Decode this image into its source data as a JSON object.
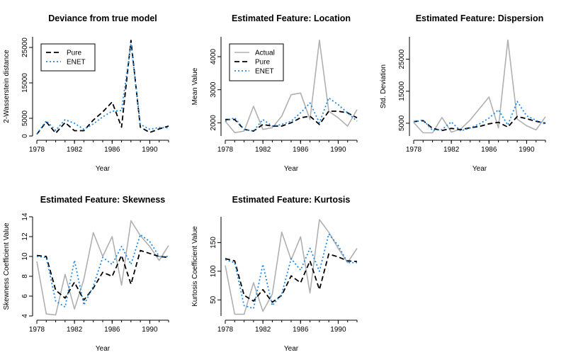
{
  "colors": {
    "pure": "#000000",
    "enet": "#1E88E5",
    "actual": "#B0B0B0"
  },
  "chart_data": [
    {
      "type": "line",
      "title": "Deviance from true model",
      "xlabel": "Year",
      "ylabel": "2-Wasserstein distance",
      "xlim": [
        1978,
        1992
      ],
      "ylim": [
        0,
        28000
      ],
      "xticks": [
        1978,
        1982,
        1986,
        1990
      ],
      "yticks": [
        0,
        5000,
        15000,
        25000
      ],
      "legend": "top-left",
      "x": [
        1978,
        1979,
        1980,
        1981,
        1982,
        1983,
        1984,
        1985,
        1986,
        1987,
        1988,
        1989,
        1990,
        1991,
        1992
      ],
      "series": [
        {
          "name": "Pure",
          "style": "pure",
          "values": [
            500,
            4000,
            800,
            3800,
            1500,
            1500,
            4500,
            6800,
            9600,
            2500,
            27000,
            2500,
            1000,
            2000,
            2800
          ]
        },
        {
          "name": "ENET",
          "style": "enet",
          "values": [
            600,
            4300,
            1600,
            4600,
            3600,
            1900,
            3400,
            5400,
            7000,
            7200,
            26000,
            3300,
            1900,
            2400,
            2300
          ]
        }
      ]
    },
    {
      "type": "line",
      "title": "Estimated Feature: Location",
      "xlabel": "Year",
      "ylabel": "Mean Value",
      "xlim": [
        1978,
        1992
      ],
      "ylim": [
        1600,
        4600
      ],
      "xticks": [
        1978,
        1982,
        1986,
        1990
      ],
      "yticks": [
        2000,
        3000,
        4000
      ],
      "legend": "top-left",
      "x": [
        1978,
        1979,
        1980,
        1981,
        1982,
        1983,
        1984,
        1985,
        1986,
        1987,
        1988,
        1989,
        1990,
        1991,
        1992
      ],
      "series": [
        {
          "name": "Actual",
          "style": "actual",
          "values": [
            2050,
            1700,
            1750,
            2500,
            1800,
            1850,
            2200,
            2850,
            2900,
            2100,
            4500,
            2350,
            2150,
            1900,
            2400
          ]
        },
        {
          "name": "Pure",
          "style": "pure",
          "values": [
            2100,
            2100,
            1800,
            1750,
            1950,
            1900,
            1900,
            2000,
            2150,
            2200,
            1950,
            2350,
            2350,
            2300,
            2150
          ]
        },
        {
          "name": "ENET",
          "style": "enet",
          "values": [
            2050,
            2150,
            1800,
            1750,
            2100,
            1900,
            1950,
            2050,
            2300,
            2600,
            2000,
            2750,
            2550,
            2300,
            2050
          ]
        }
      ]
    },
    {
      "type": "line",
      "title": "Estimated Feature: Dispersion",
      "xlabel": "Year",
      "ylabel": "Std. Deviation",
      "xlim": [
        1978,
        1992
      ],
      "ylim": [
        1000,
        32000
      ],
      "xticks": [
        1978,
        1982,
        1986,
        1990
      ],
      "yticks": [
        5000,
        15000,
        25000
      ],
      "legend": "none",
      "x": [
        1978,
        1979,
        1980,
        1981,
        1982,
        1983,
        1984,
        1985,
        1986,
        1987,
        1988,
        1989,
        1990,
        1991,
        1992
      ],
      "series": [
        {
          "name": "Actual",
          "style": "actual",
          "values": [
            5200,
            2000,
            2000,
            6800,
            2200,
            3200,
            6000,
            9600,
            13200,
            3500,
            31000,
            6300,
            4200,
            2900,
            7000
          ]
        },
        {
          "name": "Pure",
          "style": "pure",
          "values": [
            5500,
            5800,
            3400,
            2700,
            3400,
            3000,
            3600,
            4000,
            4800,
            5300,
            3800,
            7100,
            6400,
            5600,
            5000
          ]
        },
        {
          "name": "ENET",
          "style": "enet",
          "values": [
            5400,
            6000,
            2800,
            3000,
            5400,
            2600,
            3500,
            4800,
            6600,
            9200,
            4400,
            11800,
            7300,
            5900,
            4700
          ]
        }
      ]
    },
    {
      "type": "line",
      "title": "Estimated Feature: Skewness",
      "xlabel": "Year",
      "ylabel": "Skewness Coefficient Value",
      "xlim": [
        1978,
        1992
      ],
      "ylim": [
        4,
        14
      ],
      "xticks": [
        1978,
        1982,
        1986,
        1990
      ],
      "yticks": [
        4,
        6,
        8,
        10,
        12,
        14
      ],
      "legend": "none",
      "x": [
        1978,
        1979,
        1980,
        1981,
        1982,
        1983,
        1984,
        1985,
        1986,
        1987,
        1988,
        1989,
        1990,
        1991,
        1992
      ],
      "series": [
        {
          "name": "Actual",
          "style": "actual",
          "values": [
            9.5,
            4.2,
            4.1,
            8.2,
            4.7,
            7.7,
            12.4,
            10.0,
            12.0,
            7.1,
            13.6,
            12.1,
            11.0,
            9.6,
            11.1
          ]
        },
        {
          "name": "Pure",
          "style": "pure",
          "values": [
            10.1,
            10.0,
            6.6,
            5.8,
            7.4,
            5.6,
            6.8,
            8.4,
            8.0,
            10.1,
            7.2,
            10.6,
            10.3,
            10.0,
            9.9
          ]
        },
        {
          "name": "ENET",
          "style": "enet",
          "values": [
            10.0,
            9.9,
            5.5,
            4.9,
            9.6,
            5.1,
            7.0,
            9.9,
            9.2,
            11.0,
            9.2,
            12.2,
            11.5,
            10.0,
            10.0
          ]
        }
      ]
    },
    {
      "type": "line",
      "title": "Estimated Feature: Kurtosis",
      "xlabel": "Year",
      "ylabel": "Kurtosis Coefficient Value",
      "xlim": [
        1978,
        1992
      ],
      "ylim": [
        22,
        195
      ],
      "xticks": [
        1978,
        1982,
        1986,
        1990
      ],
      "yticks": [
        50,
        100,
        150
      ],
      "legend": "none",
      "x": [
        1978,
        1979,
        1980,
        1981,
        1982,
        1983,
        1984,
        1985,
        1986,
        1987,
        1988,
        1989,
        1990,
        1991,
        1992
      ],
      "series": [
        {
          "name": "Actual",
          "style": "actual",
          "values": [
            110,
            25,
            25,
            80,
            30,
            60,
            168,
            120,
            160,
            62,
            190,
            168,
            140,
            115,
            140
          ]
        },
        {
          "name": "Pure",
          "style": "pure",
          "values": [
            122,
            118,
            58,
            48,
            68,
            46,
            58,
            92,
            80,
            118,
            68,
            130,
            125,
            118,
            117
          ]
        },
        {
          "name": "ENET",
          "style": "enet",
          "values": [
            120,
            115,
            40,
            35,
            112,
            40,
            60,
            122,
            102,
            140,
            100,
            165,
            145,
            115,
            115
          ]
        }
      ]
    }
  ]
}
